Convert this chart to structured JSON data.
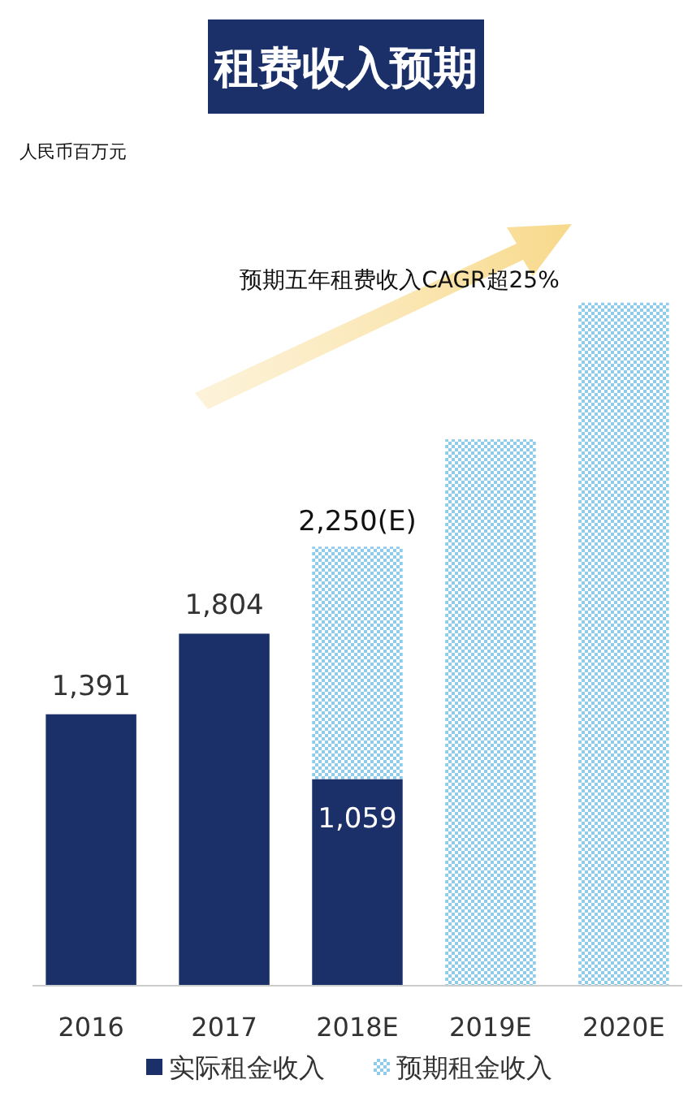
{
  "chart_data": {
    "type": "bar",
    "title": "租费收入预期",
    "stacked": true,
    "legend": "bottom",
    "categories": [
      "2016",
      "2017",
      "2018E",
      "2019E",
      "2020E"
    ],
    "series": [
      {
        "name": "实际租金收入",
        "color": "#1b2f68",
        "values": [
          1391,
          1804,
          1059,
          null,
          null
        ],
        "value_labels": [
          "1,391",
          "1,804",
          "1,059",
          null,
          null
        ]
      },
      {
        "name": "预期租金收入",
        "color": "#8fcbea",
        "values": [
          null,
          null,
          1191,
          2800,
          3500
        ]
      }
    ],
    "totals": [
      null,
      null,
      "2,250(E)",
      null,
      null
    ],
    "annotations": [
      "人民币百万元",
      "预期五年租费收入CAGR超25%"
    ]
  }
}
